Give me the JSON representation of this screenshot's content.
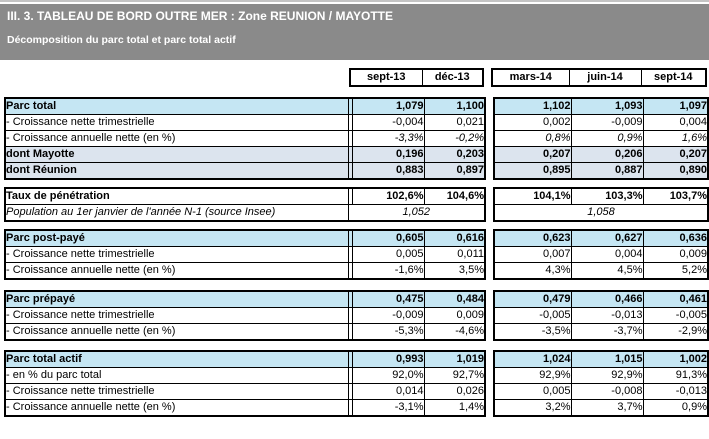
{
  "header": {
    "title": "III. 3. TABLEAU DE BORD OUTRE MER : Zone REUNION / MAYOTTE",
    "subtitle": "Décomposition du parc total et parc total actif"
  },
  "columns": [
    "sept-13",
    "déc-13",
    "mars-14",
    "juin-14",
    "sept-14"
  ],
  "colors": {
    "band_gray": "#8a8a8a",
    "top_strip_gray": "#c4c4c4",
    "section_header_blue": "#c5e6f3",
    "dont_row_blue_gray": "#dce4ee",
    "border": "#000000"
  },
  "sections": [
    {
      "name": "parc-total",
      "rows": [
        {
          "label": "Parc total",
          "style": "section-header",
          "values": [
            "1,079",
            "1,100",
            "1,102",
            "1,093",
            "1,097"
          ]
        },
        {
          "label": "- Croissance nette trimestrielle",
          "style": "plain",
          "values": [
            "-0,004",
            "0,021",
            "0,002",
            "-0,009",
            "0,004"
          ]
        },
        {
          "label": "- Croissance annuelle nette (en %)",
          "style": "italic-values",
          "values": [
            "-3,3%",
            "-0,2%",
            "0,8%",
            "0,9%",
            "1,6%"
          ]
        },
        {
          "label": "dont Mayotte",
          "style": "dont",
          "values": [
            "0,196",
            "0,203",
            "0,207",
            "0,206",
            "0,207"
          ]
        },
        {
          "label": "dont Réunion",
          "style": "dont",
          "values": [
            "0,883",
            "0,897",
            "0,895",
            "0,887",
            "0,890"
          ]
        }
      ]
    },
    {
      "name": "taux-penetration",
      "rows": [
        {
          "label": "Taux de pénétration",
          "style": "bold-row",
          "values": [
            "102,6%",
            "104,6%",
            "104,1%",
            "103,3%",
            "103,7%"
          ]
        },
        {
          "label": "Population au 1er janvier de l'année N-1 (source Insee)",
          "style": "population",
          "merged_values": [
            {
              "value": "1,052",
              "span": 2
            },
            {
              "value": "1,058",
              "span": 3
            }
          ]
        }
      ]
    },
    {
      "name": "parc-post-paye",
      "rows": [
        {
          "label": "Parc post-payé",
          "style": "section-header",
          "values": [
            "0,605",
            "0,616",
            "0,623",
            "0,627",
            "0,636"
          ]
        },
        {
          "label": "- Croissance nette trimestrielle",
          "style": "plain",
          "values": [
            "0,005",
            "0,011",
            "0,007",
            "0,004",
            "0,009"
          ]
        },
        {
          "label": "- Croissance annuelle nette (en %)",
          "style": "plain",
          "values": [
            "-1,6%",
            "3,5%",
            "4,3%",
            "4,5%",
            "5,2%"
          ]
        }
      ]
    },
    {
      "name": "parc-prepaye",
      "rows": [
        {
          "label": "Parc prépayé",
          "style": "section-header",
          "values": [
            "0,475",
            "0,484",
            "0,479",
            "0,466",
            "0,461"
          ]
        },
        {
          "label": "- Croissance nette trimestrielle",
          "style": "plain",
          "values": [
            "-0,009",
            "0,009",
            "-0,005",
            "-0,013",
            "-0,005"
          ]
        },
        {
          "label": "- Croissance annuelle nette (en %)",
          "style": "plain",
          "values": [
            "-5,3%",
            "-4,6%",
            "-3,5%",
            "-3,7%",
            "-2,9%"
          ]
        }
      ]
    },
    {
      "name": "parc-total-actif",
      "rows": [
        {
          "label": "Parc total actif",
          "style": "section-header",
          "values": [
            "0,993",
            "1,019",
            "1,024",
            "1,015",
            "1,002"
          ]
        },
        {
          "label": "- en % du parc total",
          "style": "plain",
          "values": [
            "92,0%",
            "92,7%",
            "92,9%",
            "92,9%",
            "91,3%"
          ]
        },
        {
          "label": "- Croissance nette trimestrielle",
          "style": "plain",
          "values": [
            "0,014",
            "0,026",
            "0,005",
            "-0,008",
            "-0,013"
          ]
        },
        {
          "label": "- Croissance annuelle nette (en %)",
          "style": "plain",
          "values": [
            "-3,1%",
            "1,4%",
            "3,2%",
            "3,7%",
            "0,9%"
          ]
        }
      ]
    }
  ]
}
